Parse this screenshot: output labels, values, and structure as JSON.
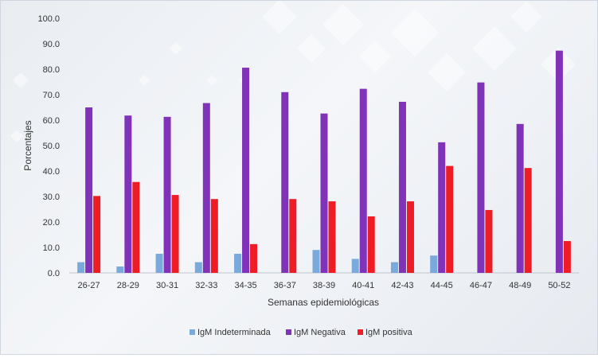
{
  "chart_data": {
    "type": "bar",
    "categories": [
      "26-27",
      "28-29",
      "30-31",
      "32-33",
      "34-35",
      "36-37",
      "38-39",
      "40-41",
      "42-43",
      "44-45",
      "46-47",
      "48-49",
      "50-52"
    ],
    "series": [
      {
        "name": "IgM Indeterminada",
        "color": "#7aa9dc",
        "values": [
          4.2,
          2.5,
          7.5,
          4.2,
          7.5,
          0,
          9.0,
          5.5,
          4.2,
          6.8,
          0,
          0,
          0
        ]
      },
      {
        "name": "IgM Negativa",
        "color": "#8032b8",
        "values": [
          65.0,
          61.8,
          61.3,
          66.7,
          80.6,
          71.0,
          62.6,
          72.3,
          67.2,
          51.3,
          74.8,
          58.5,
          87.3
        ]
      },
      {
        "name": "IgM positiva",
        "color": "#ee1c25",
        "values": [
          30.2,
          35.7,
          30.6,
          29.0,
          11.3,
          29.0,
          28.1,
          22.2,
          28.1,
          42.0,
          24.7,
          41.2,
          12.5
        ]
      }
    ],
    "ylabel": "Porcentajes",
    "xlabel": "Semanas epidemiológicas",
    "ylim": [
      0,
      100
    ],
    "yticks": [
      "0.0",
      "10.0",
      "20.0",
      "30.0",
      "40.0",
      "50.0",
      "60.0",
      "70.0",
      "80.0",
      "90.0",
      "100.0"
    ],
    "grid": false,
    "legend_position": "bottom-center"
  }
}
